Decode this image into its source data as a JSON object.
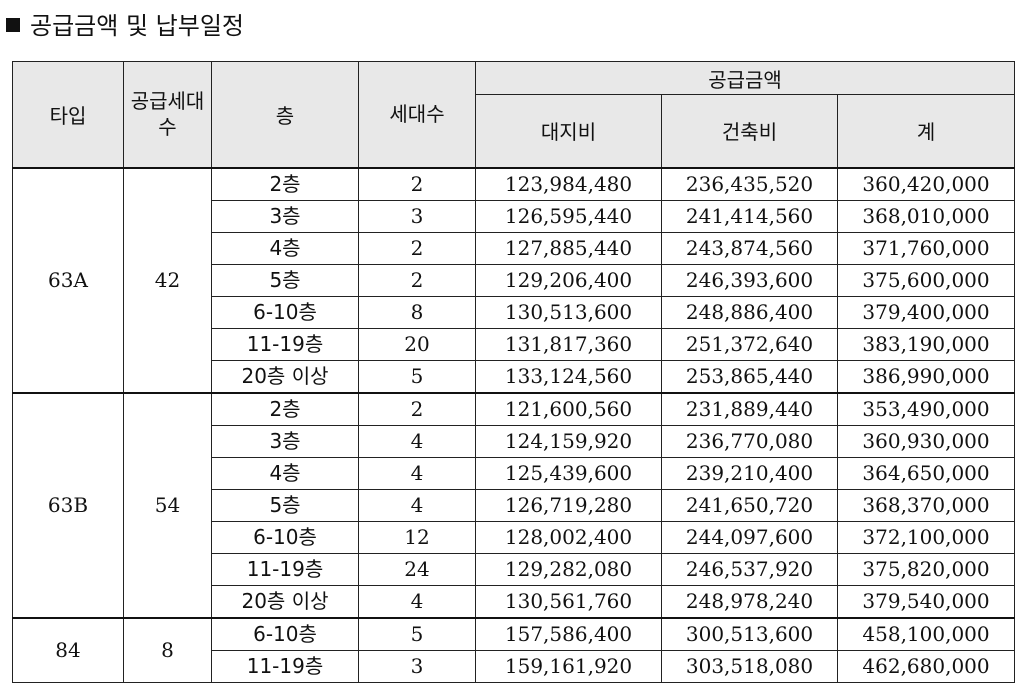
{
  "title": "공급금액 및 납부일정",
  "headers": {
    "type": "타입",
    "supply_units": "공급세대수",
    "floor": "층",
    "units": "세대수",
    "supply_amount": "공급금액",
    "land": "대지비",
    "building": "건축비",
    "total": "계"
  },
  "groups": [
    {
      "type": "63A",
      "supply_units": "42",
      "rows": [
        {
          "floor": "2층",
          "units": "2",
          "land": "123,984,480",
          "building": "236,435,520",
          "total": "360,420,000"
        },
        {
          "floor": "3층",
          "units": "3",
          "land": "126,595,440",
          "building": "241,414,560",
          "total": "368,010,000"
        },
        {
          "floor": "4층",
          "units": "2",
          "land": "127,885,440",
          "building": "243,874,560",
          "total": "371,760,000"
        },
        {
          "floor": "5층",
          "units": "2",
          "land": "129,206,400",
          "building": "246,393,600",
          "total": "375,600,000"
        },
        {
          "floor": "6-10층",
          "units": "8",
          "land": "130,513,600",
          "building": "248,886,400",
          "total": "379,400,000"
        },
        {
          "floor": "11-19층",
          "units": "20",
          "land": "131,817,360",
          "building": "251,372,640",
          "total": "383,190,000"
        },
        {
          "floor": "20층 이상",
          "units": "5",
          "land": "133,124,560",
          "building": "253,865,440",
          "total": "386,990,000"
        }
      ]
    },
    {
      "type": "63B",
      "supply_units": "54",
      "rows": [
        {
          "floor": "2층",
          "units": "2",
          "land": "121,600,560",
          "building": "231,889,440",
          "total": "353,490,000"
        },
        {
          "floor": "3층",
          "units": "4",
          "land": "124,159,920",
          "building": "236,770,080",
          "total": "360,930,000"
        },
        {
          "floor": "4층",
          "units": "4",
          "land": "125,439,600",
          "building": "239,210,400",
          "total": "364,650,000"
        },
        {
          "floor": "5층",
          "units": "4",
          "land": "126,719,280",
          "building": "241,650,720",
          "total": "368,370,000"
        },
        {
          "floor": "6-10층",
          "units": "12",
          "land": "128,002,400",
          "building": "244,097,600",
          "total": "372,100,000"
        },
        {
          "floor": "11-19층",
          "units": "24",
          "land": "129,282,080",
          "building": "246,537,920",
          "total": "375,820,000"
        },
        {
          "floor": "20층 이상",
          "units": "4",
          "land": "130,561,760",
          "building": "248,978,240",
          "total": "379,540,000"
        }
      ]
    },
    {
      "type": "84",
      "supply_units": "8",
      "rows": [
        {
          "floor": "6-10층",
          "units": "5",
          "land": "157,586,400",
          "building": "300,513,600",
          "total": "458,100,000"
        },
        {
          "floor": "11-19층",
          "units": "3",
          "land": "159,161,920",
          "building": "303,518,080",
          "total": "462,680,000"
        }
      ]
    }
  ]
}
